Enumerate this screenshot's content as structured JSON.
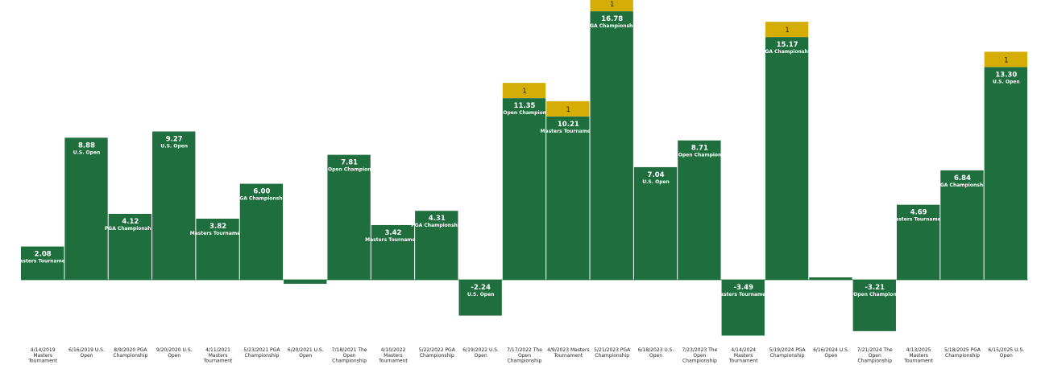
{
  "chart_data": {
    "type": "bar",
    "colors": {
      "score": "#1f6e3d",
      "win": "#d4ae06",
      "baseline": "#1f6e3d"
    },
    "categories": [
      "4/14/2019 Masters Tournament",
      "6/16/2019 U.S. Open",
      "8/9/2020 PGA Championship",
      "9/20/2020 U.S. Open",
      "4/11/2021 Masters Tournament",
      "5/23/2021 PGA Championship",
      "6/20/2021 U.S. Open",
      "7/18/2021 The Open Championship",
      "4/10/2022 Masters Tournament",
      "5/22/2022 PGA Championship",
      "6/19/2022 U.S. Open",
      "7/17/2022 The Open Championship",
      "4/9/2023 Masters Tournament",
      "5/21/2023 PGA Championship",
      "6/18/2023 U.S. Open",
      "7/23/2023 The Open Championship",
      "4/14/2024 Masters Tournament",
      "5/19/2024 PGA Championship",
      "6/16/2024 U.S. Open",
      "7/21/2024 The Open Championship",
      "4/13/2025 Masters Tournament",
      "5/18/2025 PGA Championship",
      "6/15/2025 U.S. Open"
    ],
    "tournaments": [
      "Masters Tournament",
      "U.S. Open",
      "PGA Championship",
      "U.S. Open",
      "Masters Tournament",
      "PGA Championship",
      "U.S. Open",
      "The Open Championship",
      "Masters Tournament",
      "PGA Championship",
      "U.S. Open",
      "The Open Championship",
      "Masters Tournament",
      "PGA Championship",
      "U.S. Open",
      "The Open Championship",
      "Masters Tournament",
      "PGA Championship",
      "U.S. Open",
      "The Open Championship",
      "Masters Tournament",
      "PGA Championship",
      "U.S. Open"
    ],
    "series": [
      {
        "values": [
          2.08,
          8.88,
          4.12,
          9.27,
          3.82,
          6.0,
          -0.25,
          7.81,
          3.42,
          4.31,
          -2.24,
          11.35,
          10.21,
          16.78,
          7.04,
          8.71,
          -3.49,
          15.17,
          0.15,
          -3.21,
          4.69,
          6.84,
          13.3
        ],
        "labels": [
          "2.08",
          "8.88",
          "4.12",
          "9.27",
          "3.82",
          "6.00",
          "",
          "7.81",
          "3.42",
          "4.31",
          "-2.24",
          "11.35",
          "10.21",
          "16.78",
          "7.04",
          "8.71",
          "-3.49",
          "15.17",
          "",
          "-3.21",
          "4.69",
          "6.84",
          "13.30"
        ]
      },
      {
        "values": [
          0,
          0,
          0,
          0,
          0,
          0,
          0,
          0,
          0,
          0,
          0,
          1,
          1,
          1,
          0,
          0,
          0,
          1,
          0,
          0,
          0,
          0,
          1
        ],
        "labels": [
          "",
          "",
          "",
          "",
          "",
          "",
          "",
          "",
          "",
          "",
          "",
          "1",
          "1",
          "1",
          "",
          "",
          "",
          "1",
          "",
          "",
          "",
          "",
          "1"
        ]
      }
    ],
    "ylim": [
      -3.49,
      17.78
    ],
    "grid": false,
    "legend": "none"
  }
}
